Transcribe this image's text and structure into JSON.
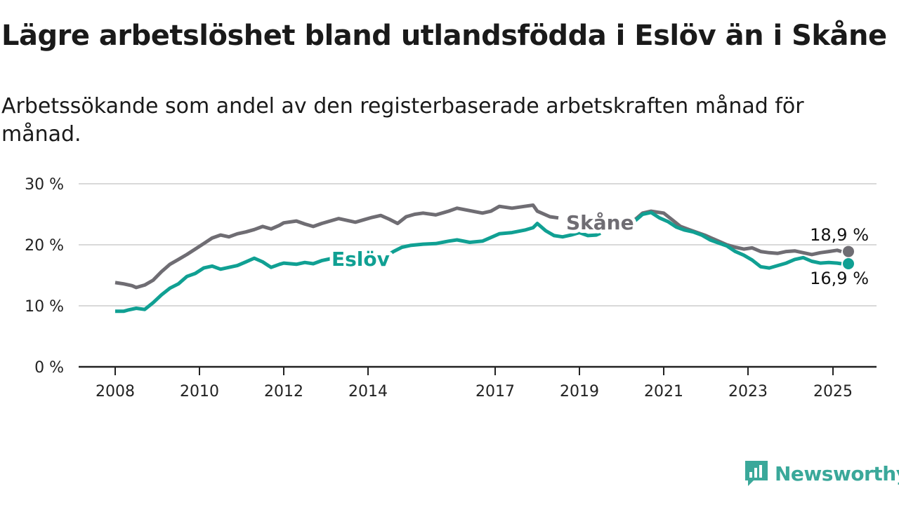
{
  "title": "Lägre arbetslöshet bland utlandsfödda i Eslöv än i Skåne",
  "subtitle": "Arbetssökande som andel av den registerbaserade arbetskraften månad för månad.",
  "brand": {
    "name": "Newsworthy",
    "color": "#3aa89a"
  },
  "chart_data": {
    "type": "line",
    "x_ticks": [
      "2008",
      "2010",
      "2012",
      "2014",
      "2017",
      "2019",
      "2021",
      "2023",
      "2025"
    ],
    "y_ticks": [
      "0 %",
      "10 %",
      "20 %",
      "30 %"
    ],
    "ylim": [
      0,
      30
    ],
    "xlim": [
      2007.8,
      2026.0
    ],
    "grid": true,
    "series": [
      {
        "name": "Skåne",
        "color": "#6f6d73",
        "end_label": "18,9 %",
        "points": [
          [
            2008.0,
            13.8
          ],
          [
            2008.2,
            13.6
          ],
          [
            2008.4,
            13.3
          ],
          [
            2008.5,
            13.0
          ],
          [
            2008.7,
            13.4
          ],
          [
            2008.9,
            14.2
          ],
          [
            2009.1,
            15.6
          ],
          [
            2009.3,
            16.8
          ],
          [
            2009.5,
            17.6
          ],
          [
            2009.7,
            18.4
          ],
          [
            2009.9,
            19.3
          ],
          [
            2010.1,
            20.2
          ],
          [
            2010.3,
            21.1
          ],
          [
            2010.5,
            21.6
          ],
          [
            2010.7,
            21.3
          ],
          [
            2010.9,
            21.8
          ],
          [
            2011.1,
            22.1
          ],
          [
            2011.3,
            22.5
          ],
          [
            2011.5,
            23.0
          ],
          [
            2011.7,
            22.6
          ],
          [
            2011.9,
            23.2
          ],
          [
            2012.0,
            23.6
          ],
          [
            2012.3,
            23.9
          ],
          [
            2012.5,
            23.4
          ],
          [
            2012.7,
            23.0
          ],
          [
            2012.9,
            23.5
          ],
          [
            2013.1,
            23.9
          ],
          [
            2013.3,
            24.3
          ],
          [
            2013.5,
            24.0
          ],
          [
            2013.7,
            23.7
          ],
          [
            2013.9,
            24.1
          ],
          [
            2014.1,
            24.5
          ],
          [
            2014.3,
            24.8
          ],
          [
            2014.5,
            24.2
          ],
          [
            2014.7,
            23.5
          ],
          [
            2014.9,
            24.6
          ],
          [
            2015.1,
            25.0
          ],
          [
            2015.3,
            25.2
          ],
          [
            2015.6,
            24.9
          ],
          [
            2015.9,
            25.5
          ],
          [
            2016.1,
            26.0
          ],
          [
            2016.4,
            25.6
          ],
          [
            2016.7,
            25.2
          ],
          [
            2016.9,
            25.5
          ],
          [
            2017.1,
            26.3
          ],
          [
            2017.4,
            26.0
          ],
          [
            2017.7,
            26.3
          ],
          [
            2017.9,
            26.5
          ],
          [
            2018.0,
            25.5
          ],
          [
            2018.3,
            24.6
          ],
          [
            2018.5,
            24.4
          ]
        ],
        "points_right": [
          [
            2020.3,
            24.0
          ],
          [
            2020.5,
            25.2
          ],
          [
            2020.7,
            25.5
          ],
          [
            2021.0,
            25.2
          ],
          [
            2021.2,
            24.1
          ],
          [
            2021.4,
            23.0
          ],
          [
            2021.6,
            22.5
          ],
          [
            2021.8,
            22.0
          ],
          [
            2022.0,
            21.5
          ],
          [
            2022.2,
            20.9
          ],
          [
            2022.5,
            20.0
          ],
          [
            2022.7,
            19.6
          ],
          [
            2022.9,
            19.3
          ],
          [
            2023.1,
            19.5
          ],
          [
            2023.3,
            18.9
          ],
          [
            2023.5,
            18.7
          ],
          [
            2023.7,
            18.6
          ],
          [
            2023.9,
            18.9
          ],
          [
            2024.1,
            19.0
          ],
          [
            2024.3,
            18.7
          ],
          [
            2024.5,
            18.4
          ],
          [
            2024.7,
            18.7
          ],
          [
            2024.9,
            18.9
          ],
          [
            2025.1,
            19.1
          ],
          [
            2025.2,
            18.9
          ]
        ]
      },
      {
        "name": "Eslöv",
        "color": "#10a093",
        "end_label": "16,9 %",
        "points": [
          [
            2008.0,
            9.1
          ],
          [
            2008.2,
            9.1
          ],
          [
            2008.3,
            9.3
          ],
          [
            2008.5,
            9.6
          ],
          [
            2008.7,
            9.4
          ],
          [
            2008.9,
            10.5
          ],
          [
            2009.1,
            11.8
          ],
          [
            2009.3,
            12.9
          ],
          [
            2009.5,
            13.6
          ],
          [
            2009.7,
            14.8
          ],
          [
            2009.9,
            15.3
          ],
          [
            2010.1,
            16.2
          ],
          [
            2010.3,
            16.5
          ],
          [
            2010.5,
            16.0
          ],
          [
            2010.7,
            16.3
          ],
          [
            2010.9,
            16.6
          ],
          [
            2011.1,
            17.2
          ],
          [
            2011.3,
            17.8
          ],
          [
            2011.5,
            17.2
          ],
          [
            2011.7,
            16.3
          ],
          [
            2011.9,
            16.8
          ],
          [
            2012.0,
            17.0
          ],
          [
            2012.3,
            16.8
          ],
          [
            2012.5,
            17.1
          ],
          [
            2012.7,
            16.9
          ],
          [
            2012.9,
            17.4
          ],
          [
            2013.1,
            17.7
          ],
          [
            2013.2,
            17.9
          ]
        ],
        "points_mid": [
          [
            2014.4,
            18.0
          ],
          [
            2014.6,
            18.9
          ],
          [
            2014.8,
            19.6
          ],
          [
            2015.0,
            19.9
          ],
          [
            2015.3,
            20.1
          ],
          [
            2015.6,
            20.2
          ],
          [
            2015.9,
            20.6
          ],
          [
            2016.1,
            20.8
          ],
          [
            2016.4,
            20.4
          ],
          [
            2016.7,
            20.6
          ],
          [
            2016.9,
            21.2
          ],
          [
            2017.1,
            21.8
          ],
          [
            2017.4,
            22.0
          ],
          [
            2017.7,
            22.4
          ],
          [
            2017.9,
            22.8
          ],
          [
            2018.0,
            23.5
          ],
          [
            2018.2,
            22.3
          ],
          [
            2018.4,
            21.5
          ],
          [
            2018.6,
            21.3
          ],
          [
            2018.8,
            21.6
          ],
          [
            2019.0,
            22.0
          ],
          [
            2019.2,
            21.5
          ],
          [
            2019.4,
            21.6
          ],
          [
            2019.5,
            21.9
          ]
        ],
        "points_right": [
          [
            2020.3,
            23.8
          ],
          [
            2020.5,
            25.0
          ],
          [
            2020.7,
            25.3
          ],
          [
            2020.9,
            24.4
          ],
          [
            2021.1,
            23.8
          ],
          [
            2021.3,
            22.9
          ],
          [
            2021.5,
            22.4
          ],
          [
            2021.7,
            22.1
          ],
          [
            2021.9,
            21.6
          ],
          [
            2022.1,
            20.8
          ],
          [
            2022.3,
            20.3
          ],
          [
            2022.5,
            19.8
          ],
          [
            2022.7,
            18.9
          ],
          [
            2022.9,
            18.3
          ],
          [
            2023.1,
            17.5
          ],
          [
            2023.3,
            16.4
          ],
          [
            2023.5,
            16.2
          ],
          [
            2023.7,
            16.6
          ],
          [
            2023.9,
            17.0
          ],
          [
            2024.1,
            17.6
          ],
          [
            2024.3,
            17.9
          ],
          [
            2024.5,
            17.3
          ],
          [
            2024.7,
            17.0
          ],
          [
            2024.9,
            17.1
          ],
          [
            2025.1,
            17.0
          ],
          [
            2025.2,
            16.9
          ]
        ]
      }
    ]
  }
}
